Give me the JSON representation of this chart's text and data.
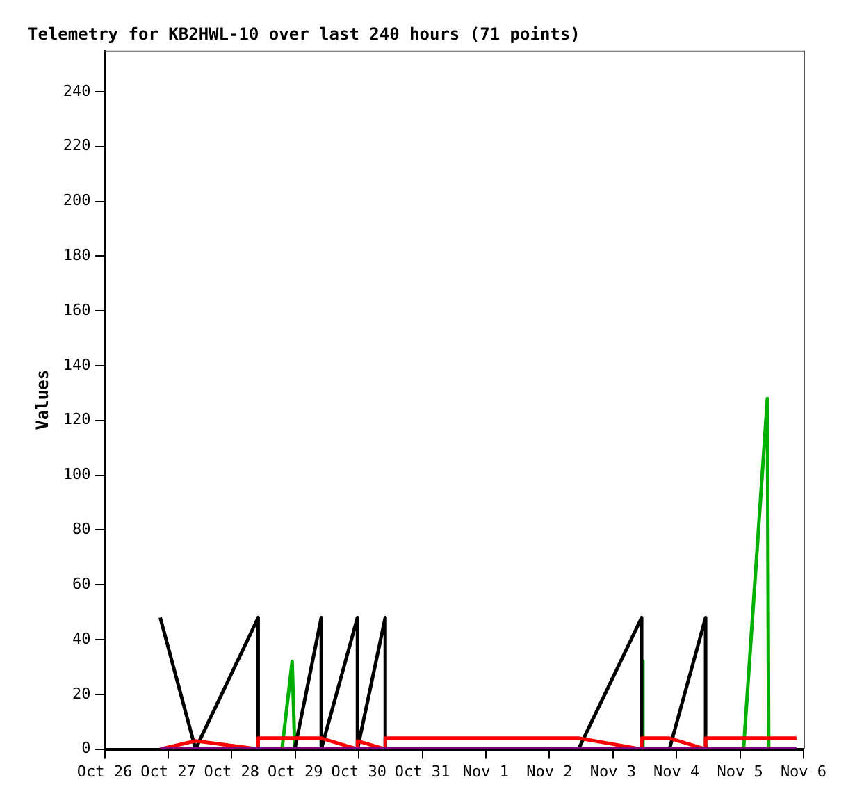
{
  "chart_data": {
    "type": "line",
    "title": "Telemetry for KB2HWL-10 over last 240 hours (71 points)",
    "ylabel": "Values",
    "ylim": [
      0,
      255
    ],
    "yticks": [
      0,
      20,
      40,
      60,
      80,
      100,
      120,
      140,
      160,
      180,
      200,
      220,
      240
    ],
    "xlim": [
      "--10-26",
      "--11-06"
    ],
    "xticks": [
      {
        "value": "--10-26",
        "label": "Oct 26"
      },
      {
        "value": "--10-27",
        "label": "Oct 27"
      },
      {
        "value": "--10-28",
        "label": "Oct 28"
      },
      {
        "value": "--10-29",
        "label": "Oct 29"
      },
      {
        "value": "--10-30",
        "label": "Oct 30"
      },
      {
        "value": "--10-31",
        "label": "Oct 31"
      },
      {
        "value": "--11-01",
        "label": "Nov 1"
      },
      {
        "value": "--11-02",
        "label": "Nov 2"
      },
      {
        "value": "--11-03",
        "label": "Nov 3"
      },
      {
        "value": "--11-04",
        "label": "Nov 4"
      },
      {
        "value": "--11-05",
        "label": "Nov 5"
      },
      {
        "value": "--11-06",
        "label": "Nov 6"
      }
    ],
    "grid": false,
    "legend": false,
    "marker": "none",
    "line_style": "solid",
    "series": [
      {
        "color": "#800080",
        "x": [
          "--10-26T21:00",
          "--10-28T10:00",
          "--10-30T10:00",
          "--11-03T10:50",
          "--11-05T21:20"
        ],
        "values": [
          0,
          0,
          0,
          0,
          0
        ]
      },
      {
        "color": "#ff0000",
        "x": [
          "--10-26T21:00",
          "--10-27T10:20",
          "--10-28T10:00",
          "--10-28T10:00",
          "--10-29T09:50",
          "--10-29T23:30",
          "--10-29T23:30",
          "--10-30T10:00",
          "--10-30T10:00",
          "--11-02T11:00",
          "--11-03T10:50",
          "--11-03T10:50",
          "--11-03T21:20",
          "--11-04T11:00",
          "--11-04T11:00",
          "--11-05T21:20"
        ],
        "values": [
          0,
          3,
          0,
          4,
          4,
          0,
          3,
          0,
          4,
          4,
          0,
          4,
          4,
          0,
          4,
          4
        ]
      },
      {
        "color": "#000000",
        "x": [
          "--10-26T21:00",
          "--10-27T10:20",
          "--10-28T10:00",
          "--10-28T10:00",
          "--10-28T23:50",
          "--10-29T09:50",
          "--10-29T09:50",
          "--10-29T23:30",
          "--10-29T23:30",
          "--10-30T10:00",
          "--10-30T10:00",
          "--11-02T11:00",
          "--11-03T10:50",
          "--11-03T10:50",
          "--11-03T21:20",
          "--11-04T11:00",
          "--11-04T11:00",
          "--11-05T21:20"
        ],
        "values": [
          48,
          0,
          48,
          0,
          0,
          48,
          0,
          48,
          0,
          48,
          0,
          0,
          48,
          0,
          0,
          48,
          0,
          0
        ]
      },
      {
        "color": "#00b000",
        "x": [
          "--10-28T19:00",
          "--10-28T22:50",
          "--10-28T23:50",
          "--11-03T10:50",
          "--11-03T11:20",
          "--11-03T11:20",
          "--11-05T01:20",
          "--11-05T10:20",
          "--11-05T10:50"
        ],
        "values": [
          0,
          32,
          0,
          0,
          32,
          0,
          0,
          128,
          0
        ]
      }
    ]
  }
}
